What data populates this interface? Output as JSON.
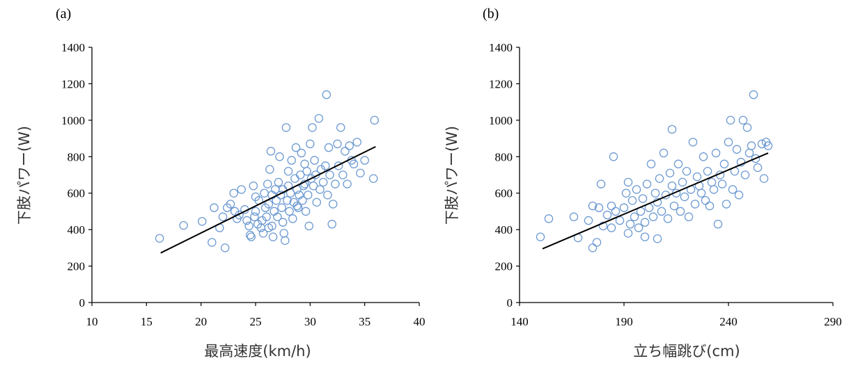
{
  "colors": {
    "marker": "#6d9ad2",
    "trend": "#000000",
    "axis": "#000000"
  },
  "chart_data": [
    {
      "type": "scatter",
      "panel_label": "(a)",
      "title": "",
      "xlabel": "最高速度(km/h)",
      "ylabel": "下肢パワー(W)",
      "xlim": [
        10,
        40
      ],
      "ylim": [
        0,
        1400
      ],
      "xticks": [
        10,
        15,
        20,
        25,
        30,
        35,
        40
      ],
      "yticks": [
        0,
        200,
        400,
        600,
        800,
        1000,
        1200,
        1400
      ],
      "grid": false,
      "trendline": {
        "x": [
          16.3,
          36.0
        ],
        "y": [
          272,
          855
        ]
      },
      "points": [
        [
          16.2,
          352
        ],
        [
          18.4,
          423
        ],
        [
          20.1,
          445
        ],
        [
          21.0,
          330
        ],
        [
          21.2,
          520
        ],
        [
          21.7,
          410
        ],
        [
          22.0,
          470
        ],
        [
          22.2,
          300
        ],
        [
          22.4,
          520
        ],
        [
          22.7,
          540
        ],
        [
          23.0,
          600
        ],
        [
          23.1,
          500
        ],
        [
          23.5,
          480
        ],
        [
          23.7,
          620
        ],
        [
          24.0,
          510
        ],
        [
          24.2,
          450
        ],
        [
          24.4,
          420
        ],
        [
          24.6,
          360
        ],
        [
          24.8,
          640
        ],
        [
          24.9,
          470
        ],
        [
          25.0,
          500
        ],
        [
          25.2,
          430
        ],
        [
          25.3,
          560
        ],
        [
          25.5,
          410
        ],
        [
          25.6,
          450
        ],
        [
          25.7,
          380
        ],
        [
          25.8,
          600
        ],
        [
          25.9,
          520
        ],
        [
          26.0,
          470
        ],
        [
          26.1,
          650
        ],
        [
          26.2,
          540
        ],
        [
          26.3,
          730
        ],
        [
          26.4,
          830
        ],
        [
          26.5,
          590
        ],
        [
          26.5,
          420
        ],
        [
          26.6,
          360
        ],
        [
          26.7,
          500
        ],
        [
          26.8,
          620
        ],
        [
          26.9,
          560
        ],
        [
          27.0,
          470
        ],
        [
          27.1,
          660
        ],
        [
          27.2,
          800
        ],
        [
          27.3,
          590
        ],
        [
          27.4,
          520
        ],
        [
          27.5,
          440
        ],
        [
          27.6,
          380
        ],
        [
          27.7,
          340
        ],
        [
          27.8,
          960
        ],
        [
          27.9,
          560
        ],
        [
          28.0,
          640
        ],
        [
          28.0,
          720
        ],
        [
          28.1,
          500
        ],
        [
          28.2,
          600
        ],
        [
          28.3,
          780
        ],
        [
          28.4,
          460
        ],
        [
          28.5,
          550
        ],
        [
          28.6,
          680
        ],
        [
          28.7,
          850
        ],
        [
          28.8,
          620
        ],
        [
          28.9,
          520
        ],
        [
          29.0,
          590
        ],
        [
          29.1,
          700
        ],
        [
          29.2,
          820
        ],
        [
          29.3,
          560
        ],
        [
          29.4,
          640
        ],
        [
          29.5,
          760
        ],
        [
          29.6,
          500
        ],
        [
          29.7,
          720
        ],
        [
          29.8,
          590
        ],
        [
          29.9,
          420
        ],
        [
          30.0,
          870
        ],
        [
          30.1,
          680
        ],
        [
          30.2,
          960
        ],
        [
          30.3,
          640
        ],
        [
          30.4,
          780
        ],
        [
          30.5,
          700
        ],
        [
          30.6,
          550
        ],
        [
          30.8,
          1010
        ],
        [
          30.9,
          620
        ],
        [
          31.0,
          730
        ],
        [
          31.2,
          660
        ],
        [
          31.4,
          750
        ],
        [
          31.5,
          1140
        ],
        [
          31.6,
          590
        ],
        [
          31.7,
          850
        ],
        [
          31.8,
          700
        ],
        [
          32.0,
          430
        ],
        [
          32.1,
          540
        ],
        [
          32.3,
          650
        ],
        [
          32.5,
          870
        ],
        [
          32.6,
          750
        ],
        [
          32.8,
          960
        ],
        [
          33.0,
          700
        ],
        [
          33.2,
          830
        ],
        [
          33.4,
          650
        ],
        [
          33.6,
          860
        ],
        [
          33.8,
          780
        ],
        [
          34.0,
          760
        ],
        [
          34.3,
          880
        ],
        [
          34.6,
          710
        ],
        [
          35.0,
          780
        ],
        [
          35.8,
          680
        ],
        [
          35.9,
          1000
        ],
        [
          26.2,
          410
        ],
        [
          24.5,
          370
        ],
        [
          27.5,
          620
        ],
        [
          28.8,
          530
        ],
        [
          25.0,
          580
        ],
        [
          29.5,
          650
        ],
        [
          23.3,
          460
        ]
      ]
    },
    {
      "type": "scatter",
      "panel_label": "(b)",
      "title": "",
      "xlabel": "立ち幅跳び(cm)",
      "ylabel": "下肢パワー(W)",
      "xlim": [
        140,
        290
      ],
      "ylim": [
        0,
        1400
      ],
      "xticks": [
        140,
        190,
        240,
        290
      ],
      "yticks": [
        0,
        200,
        400,
        600,
        800,
        1000,
        1200,
        1400
      ],
      "grid": false,
      "trendline": {
        "x": [
          151,
          259
        ],
        "y": [
          295,
          820
        ]
      },
      "points": [
        [
          150,
          360
        ],
        [
          154,
          460
        ],
        [
          166,
          470
        ],
        [
          168,
          355
        ],
        [
          173,
          450
        ],
        [
          175,
          300
        ],
        [
          175,
          530
        ],
        [
          177,
          330
        ],
        [
          178,
          520
        ],
        [
          179,
          650
        ],
        [
          180,
          420
        ],
        [
          182,
          480
        ],
        [
          184,
          530
        ],
        [
          184,
          410
        ],
        [
          185,
          800
        ],
        [
          186,
          500
        ],
        [
          188,
          450
        ],
        [
          190,
          520
        ],
        [
          191,
          600
        ],
        [
          192,
          380
        ],
        [
          192,
          660
        ],
        [
          193,
          430
        ],
        [
          194,
          560
        ],
        [
          195,
          470
        ],
        [
          196,
          620
        ],
        [
          197,
          410
        ],
        [
          198,
          500
        ],
        [
          199,
          570
        ],
        [
          200,
          440
        ],
        [
          200,
          360
        ],
        [
          201,
          650
        ],
        [
          202,
          520
        ],
        [
          203,
          760
        ],
        [
          204,
          470
        ],
        [
          205,
          600
        ],
        [
          206,
          550
        ],
        [
          206,
          350
        ],
        [
          207,
          680
        ],
        [
          208,
          500
        ],
        [
          209,
          820
        ],
        [
          210,
          590
        ],
        [
          211,
          460
        ],
        [
          212,
          710
        ],
        [
          213,
          640
        ],
        [
          213,
          950
        ],
        [
          214,
          530
        ],
        [
          215,
          600
        ],
        [
          216,
          760
        ],
        [
          217,
          500
        ],
        [
          218,
          660
        ],
        [
          219,
          580
        ],
        [
          220,
          720
        ],
        [
          221,
          470
        ],
        [
          222,
          620
        ],
        [
          223,
          880
        ],
        [
          224,
          540
        ],
        [
          225,
          690
        ],
        [
          226,
          640
        ],
        [
          227,
          600
        ],
        [
          228,
          800
        ],
        [
          229,
          560
        ],
        [
          230,
          720
        ],
        [
          231,
          530
        ],
        [
          232,
          660
        ],
        [
          233,
          620
        ],
        [
          234,
          820
        ],
        [
          235,
          430
        ],
        [
          236,
          700
        ],
        [
          237,
          650
        ],
        [
          238,
          760
        ],
        [
          239,
          540
        ],
        [
          240,
          880
        ],
        [
          241,
          1000
        ],
        [
          242,
          620
        ],
        [
          243,
          720
        ],
        [
          244,
          840
        ],
        [
          245,
          590
        ],
        [
          246,
          770
        ],
        [
          247,
          1000
        ],
        [
          248,
          700
        ],
        [
          249,
          960
        ],
        [
          250,
          820
        ],
        [
          251,
          860
        ],
        [
          252,
          1140
        ],
        [
          253,
          790
        ],
        [
          254,
          740
        ],
        [
          256,
          870
        ],
        [
          257,
          680
        ],
        [
          258,
          880
        ],
        [
          259,
          860
        ]
      ]
    }
  ]
}
